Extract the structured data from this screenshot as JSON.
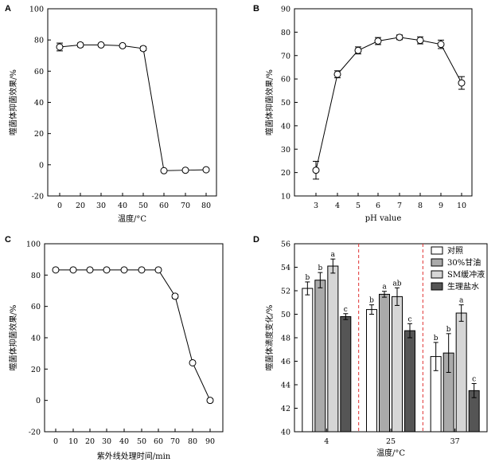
{
  "chart_data": [
    {
      "panel": "A",
      "type": "line",
      "xlabel": "温度/°C",
      "ylabel": "噬菌体抑菌效果/%",
      "x": [
        "0",
        "20",
        "30",
        "40",
        "50",
        "60",
        "70",
        "80"
      ],
      "y": [
        75.5,
        76.8,
        76.8,
        76.3,
        74.5,
        -3.8,
        -3.5,
        -3.2
      ],
      "err": [
        2.5,
        1.2,
        1.0,
        1.0,
        1.3,
        0.8,
        0.8,
        0.8
      ],
      "yticks": [
        -20,
        0,
        20,
        40,
        60,
        80,
        100
      ],
      "ylim": [
        -20,
        100
      ]
    },
    {
      "panel": "B",
      "type": "line",
      "xlabel": "pH value",
      "ylabel": "噬菌体抑菌效果/%",
      "x": [
        "3",
        "4",
        "5",
        "6",
        "7",
        "8",
        "9",
        "10"
      ],
      "y": [
        21,
        62,
        72.2,
        76.2,
        77.8,
        76.5,
        74.8,
        58.3
      ],
      "err": [
        3.8,
        1.5,
        1.5,
        1.5,
        1.0,
        1.5,
        1.8,
        2.7
      ],
      "yticks": [
        10,
        20,
        30,
        40,
        50,
        60,
        70,
        80,
        90
      ],
      "ylim": [
        10,
        90
      ]
    },
    {
      "panel": "C",
      "type": "line",
      "xlabel": "紫外线处理时间/min",
      "ylabel": "噬菌体抑菌效果/%",
      "x": [
        "0",
        "10",
        "20",
        "30",
        "40",
        "50",
        "60",
        "70",
        "80",
        "90"
      ],
      "y": [
        83.3,
        83.3,
        83.3,
        83.3,
        83.3,
        83.3,
        83.3,
        66.5,
        24,
        0
      ],
      "err": [
        0.6,
        0.6,
        0.6,
        0.6,
        0.6,
        0.6,
        0.6,
        1.2,
        0.8,
        1.0
      ],
      "yticks": [
        -20,
        0,
        20,
        40,
        60,
        80,
        100
      ],
      "ylim": [
        -20,
        100
      ]
    },
    {
      "panel": "D",
      "type": "bar",
      "xlabel": "温度/°C",
      "ylabel": "噬菌体滴度变化/%",
      "categories": [
        "4",
        "25",
        "37"
      ],
      "series": [
        {
          "name": "对照",
          "color": "#ffffff",
          "values": [
            52.2,
            50.4,
            46.4
          ],
          "err": [
            0.55,
            0.4,
            1.2
          ],
          "sig": [
            "b",
            "b",
            "b"
          ]
        },
        {
          "name": "30%甘油",
          "color": "#aaaaaa",
          "values": [
            52.9,
            51.7,
            46.7
          ],
          "err": [
            0.65,
            0.25,
            1.65
          ],
          "sig": [
            "b",
            "a",
            "b"
          ]
        },
        {
          "name": "SM缓冲液",
          "color": "#d6d6d6",
          "values": [
            54.1,
            51.5,
            50.1
          ],
          "err": [
            0.6,
            0.75,
            0.7
          ],
          "sig": [
            "a",
            "ab",
            "a"
          ]
        },
        {
          "name": "生理盐水",
          "color": "#555555",
          "values": [
            49.8,
            48.6,
            43.5
          ],
          "err": [
            0.25,
            0.6,
            0.6
          ],
          "sig": [
            "c",
            "c",
            "c"
          ]
        }
      ],
      "yticks": [
        40,
        42,
        44,
        46,
        48,
        50,
        52,
        54,
        56
      ],
      "ylim": [
        40,
        56
      ],
      "separators": "red dashed"
    }
  ]
}
